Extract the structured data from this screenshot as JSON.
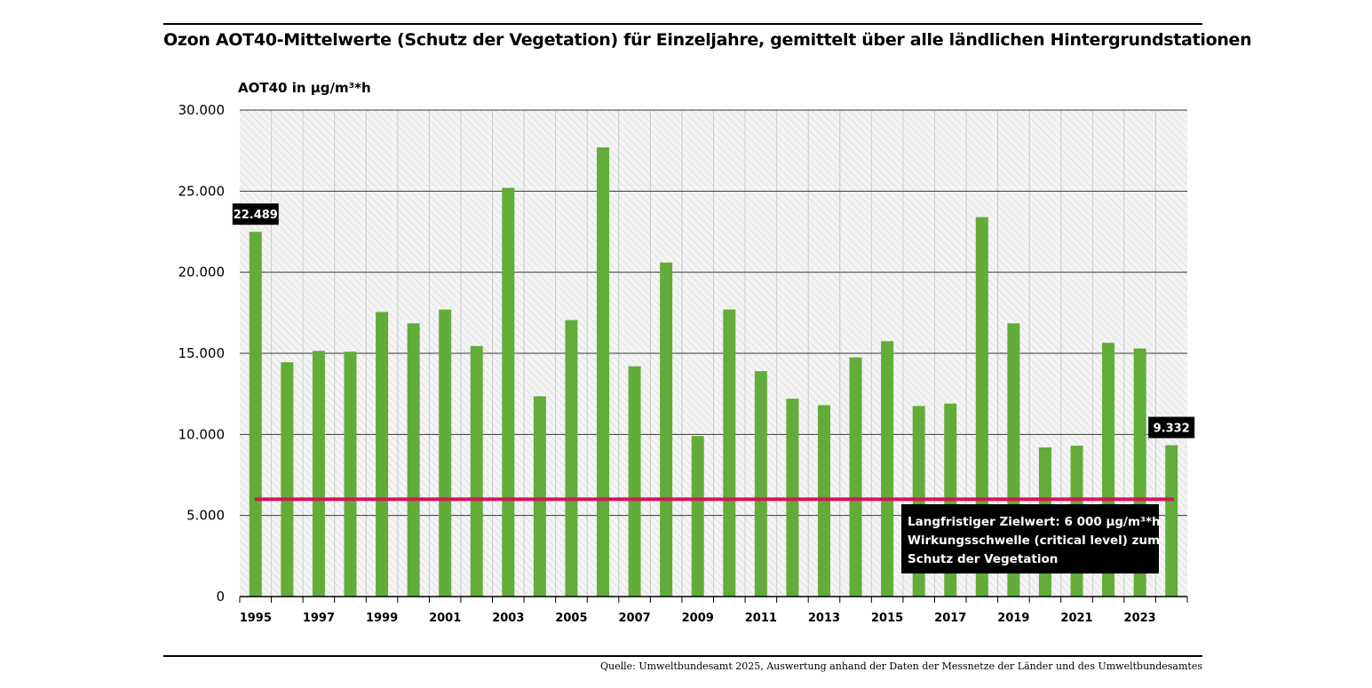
{
  "chart_data": {
    "type": "bar",
    "title": "Ozon AOT40-Mittelwerte (Schutz der Vegetation) für Einzeljahre, gemittelt über alle ländlichen Hintergrundstationen",
    "ylabel": "AOT40 in µg/m³*h",
    "xlabel": "",
    "ylim": [
      0,
      30000
    ],
    "yticks": [
      0,
      5000,
      10000,
      15000,
      20000,
      25000,
      30000
    ],
    "ytick_labels": [
      "0",
      "5.000",
      "10.000",
      "15.000",
      "20.000",
      "25.000",
      "30.000"
    ],
    "categories": [
      "1995",
      "1996",
      "1997",
      "1998",
      "1999",
      "2000",
      "2001",
      "2002",
      "2003",
      "2004",
      "2005",
      "2006",
      "2007",
      "2008",
      "2009",
      "2010",
      "2011",
      "2012",
      "2013",
      "2014",
      "2015",
      "2016",
      "2017",
      "2018",
      "2019",
      "2020",
      "2021",
      "2022",
      "2023",
      "2024"
    ],
    "xtick_labels": [
      "1995",
      "1997",
      "1999",
      "2001",
      "2003",
      "2005",
      "2007",
      "2009",
      "2011",
      "2013",
      "2015",
      "2017",
      "2019",
      "2021",
      "2023"
    ],
    "values": [
      22489,
      14450,
      15150,
      15100,
      17550,
      16850,
      17700,
      15450,
      25200,
      12350,
      17050,
      27700,
      14200,
      20600,
      9900,
      17700,
      13900,
      12200,
      11800,
      14750,
      15750,
      11750,
      11900,
      23400,
      16850,
      9200,
      9300,
      15650,
      15300,
      9332
    ],
    "bar_color": "#62ac3a",
    "data_labels": [
      {
        "category": "1995",
        "text": "22.489"
      },
      {
        "category": "2024",
        "text": "9.332"
      }
    ],
    "reference_line": {
      "value": 6000,
      "color": "#d4145a",
      "annotation": [
        "Langfristiger Zielwert: 6 000 µg/m³*h",
        "Wirkungsschwelle  (critical level) zum",
        "Schutz der Vegetation"
      ]
    },
    "grid": true
  },
  "source": "Quelle: Umweltbundesamt 2025, Auswertung anhand der Daten der Messnetze der Länder und des Umweltbundesamtes"
}
